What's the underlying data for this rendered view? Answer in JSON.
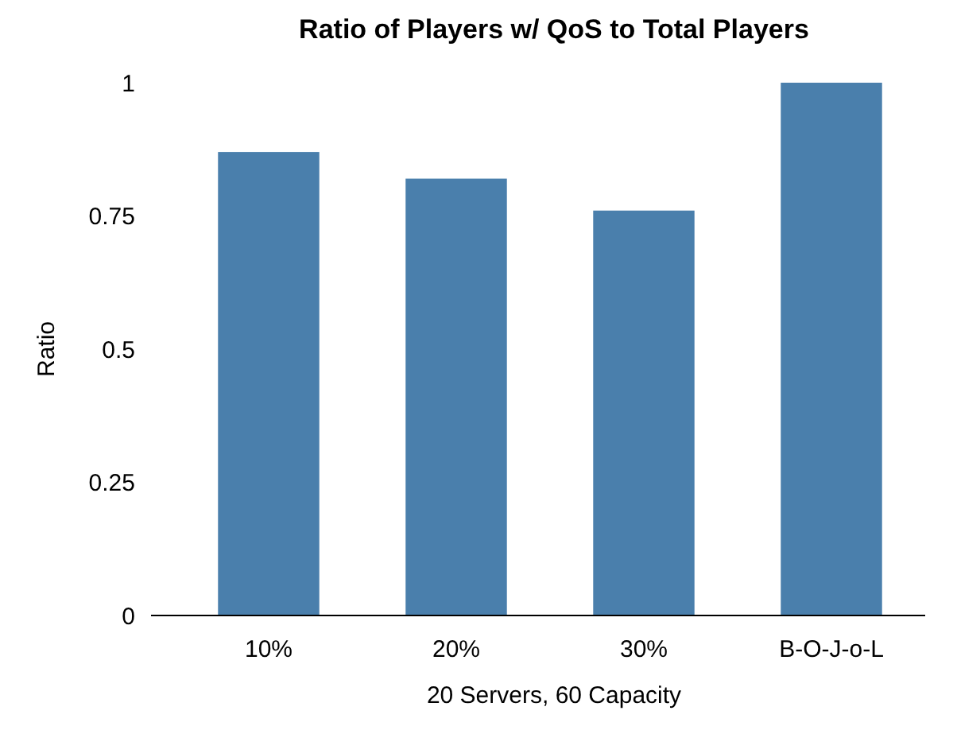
{
  "chart_data": {
    "type": "bar",
    "title": "Ratio of Players w/ QoS to Total Players",
    "xlabel": "20 Servers, 60 Capacity",
    "ylabel": "Ratio",
    "categories": [
      "10%",
      "20%",
      "30%",
      "B-O-J-o-L"
    ],
    "values": [
      0.87,
      0.82,
      0.76,
      1.0
    ],
    "color": "#4a7fac",
    "ylim": [
      0,
      1
    ],
    "yticks": [
      0,
      0.25,
      0.5,
      0.75,
      1
    ],
    "grid": false
  }
}
